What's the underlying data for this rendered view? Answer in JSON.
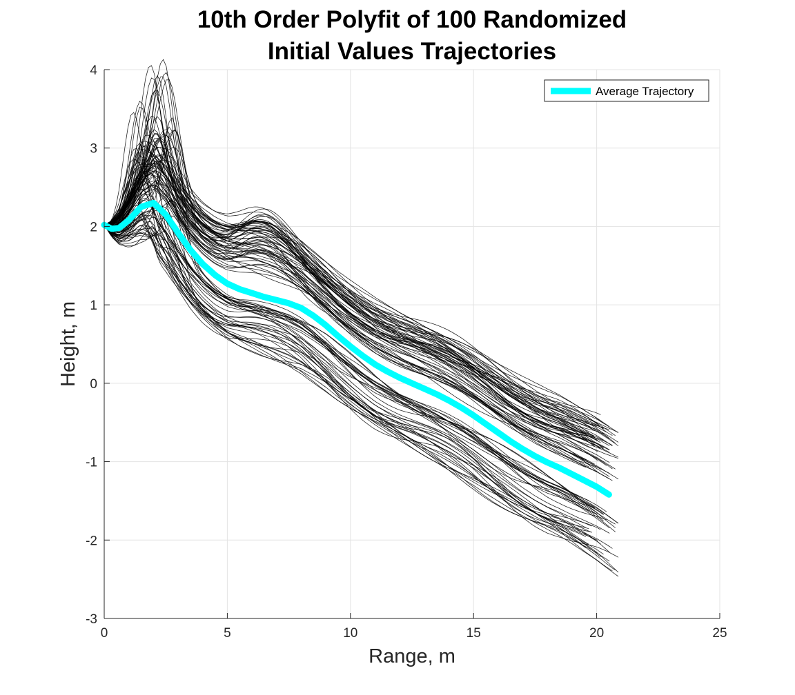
{
  "chart_data": {
    "type": "line",
    "title_lines": [
      "10th Order Polyfit of 100 Randomized",
      "Initial Values Trajectories"
    ],
    "xlabel": "Range, m",
    "ylabel": "Height, m",
    "xlim": [
      0,
      25
    ],
    "ylim": [
      -3,
      4
    ],
    "x_ticks": [
      0,
      5,
      10,
      15,
      20,
      25
    ],
    "y_ticks": [
      -3,
      -2,
      -1,
      0,
      1,
      2,
      3,
      4
    ],
    "grid": true,
    "legend": {
      "position": "top-right",
      "entries": [
        "Average Trajectory"
      ]
    },
    "colors": {
      "trajectories": "#000000",
      "average": "#00ffff",
      "grid": "#e3e3e3",
      "axis": "#262626"
    },
    "series": [
      {
        "name": "Average Trajectory",
        "x": [
          0,
          0.3,
          0.6,
          1.0,
          1.5,
          2.0,
          2.5,
          3.0,
          3.5,
          4.0,
          4.5,
          5.0,
          5.5,
          6.0,
          6.5,
          7.0,
          7.5,
          8.0,
          8.5,
          9.0,
          9.5,
          10.0,
          10.5,
          11.0,
          11.5,
          12.0,
          12.5,
          13.0,
          13.5,
          14.0,
          14.5,
          15.0,
          15.5,
          16.0,
          16.5,
          17.0,
          17.5,
          18.0,
          18.5,
          19.0,
          19.5,
          20.0,
          20.5
        ],
        "y": [
          2.02,
          1.97,
          1.98,
          2.08,
          2.25,
          2.3,
          2.15,
          1.92,
          1.7,
          1.52,
          1.38,
          1.27,
          1.2,
          1.15,
          1.1,
          1.06,
          1.02,
          0.96,
          0.86,
          0.74,
          0.6,
          0.47,
          0.35,
          0.24,
          0.15,
          0.07,
          0.0,
          -0.07,
          -0.14,
          -0.22,
          -0.31,
          -0.41,
          -0.52,
          -0.63,
          -0.74,
          -0.84,
          -0.93,
          -1.01,
          -1.08,
          -1.16,
          -1.24,
          -1.32,
          -1.42
        ]
      }
    ],
    "trajectory_count": 100
  }
}
